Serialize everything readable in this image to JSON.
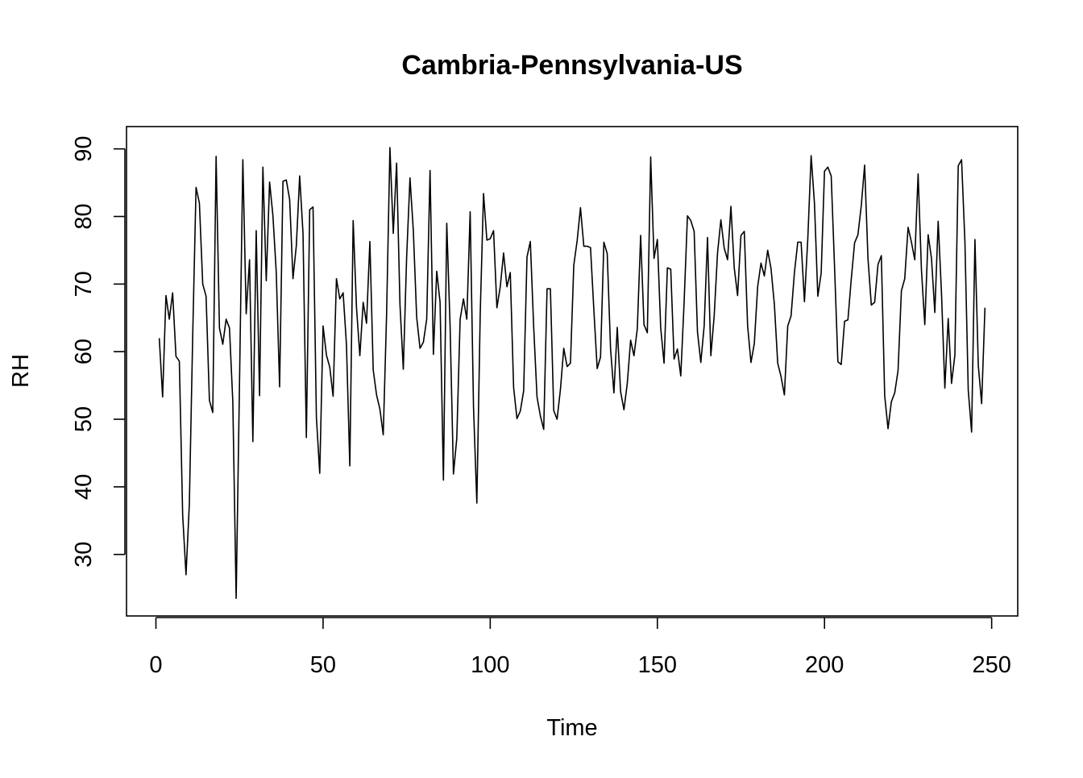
{
  "chart_data": {
    "type": "line",
    "title": "Cambria-Pennsylvania-US",
    "xlabel": "Time",
    "ylabel": "RH",
    "xlim": [
      -8.8,
      257.8
    ],
    "ylim": [
      20.9,
      93.3
    ],
    "xticks": [
      0,
      50,
      100,
      150,
      200,
      250
    ],
    "yticks": [
      30,
      40,
      50,
      60,
      70,
      80,
      90
    ],
    "grid": false,
    "legend": "none",
    "line_color": "#000000",
    "series": [
      {
        "x": [
          1,
          2,
          3,
          4,
          5,
          6,
          7,
          8,
          9,
          10,
          11,
          12,
          13,
          14,
          15,
          16,
          17,
          18,
          19,
          20,
          21,
          22,
          23,
          24,
          25,
          26,
          27,
          28,
          29,
          30,
          31,
          32,
          33,
          34,
          35,
          36,
          37,
          38,
          39,
          40,
          41,
          42,
          43,
          44,
          45,
          46,
          47,
          48,
          49,
          50,
          51,
          52,
          53,
          54,
          55,
          56,
          57,
          58,
          59,
          60,
          61,
          62,
          63,
          64,
          65,
          66,
          67,
          68,
          69,
          70,
          71,
          72,
          73,
          74,
          75,
          76,
          77,
          78,
          79,
          80,
          81,
          82,
          83,
          84,
          85,
          86,
          87,
          88,
          89,
          90,
          91,
          92,
          93,
          94,
          95,
          96,
          97,
          98,
          99,
          100,
          101,
          102,
          103,
          104,
          105,
          106,
          107,
          108,
          109,
          110,
          111,
          112,
          113,
          114,
          115,
          116,
          117,
          118,
          119,
          120,
          121,
          122,
          123,
          124,
          125,
          126,
          127,
          128,
          129,
          130,
          131,
          132,
          133,
          134,
          135,
          136,
          137,
          138,
          139,
          140,
          141,
          142,
          143,
          144,
          145,
          146,
          147,
          148,
          149,
          150,
          151,
          152,
          153,
          154,
          155,
          156,
          157,
          158,
          159,
          160,
          161,
          162,
          163,
          164,
          165,
          166,
          167,
          168,
          169,
          170,
          171,
          172,
          173,
          174,
          175,
          176,
          177,
          178,
          179,
          180,
          181,
          182,
          183,
          184,
          185,
          186,
          187,
          188,
          189,
          190,
          191,
          192,
          193,
          194,
          195,
          196,
          197,
          198,
          199,
          200,
          201,
          202,
          203,
          204,
          205,
          206,
          207,
          208,
          209,
          210,
          211,
          212,
          213,
          214,
          215,
          216,
          217,
          218,
          219,
          220,
          221,
          222,
          223,
          224,
          225,
          226,
          227,
          228,
          229,
          230,
          231,
          232,
          233,
          234,
          235,
          236,
          237,
          238,
          239,
          240,
          241,
          242,
          243,
          244,
          245,
          246,
          247,
          248
        ],
        "y": [
          62,
          53.3,
          68.3,
          64.8,
          68.7,
          59.3,
          58.6,
          35.8,
          27,
          37.5,
          62.3,
          84.3,
          82,
          70,
          68.2,
          52.8,
          51,
          88.9,
          63.5,
          61.1,
          64.8,
          63.5,
          52.6,
          23.5,
          55.3,
          88.4,
          65.6,
          73.6,
          46.7,
          77.9,
          53.5,
          87.3,
          70.5,
          85.1,
          80.1,
          71.7,
          54.8,
          85.2,
          85.4,
          82.5,
          70.8,
          75.7,
          86,
          77.5,
          47.3,
          81,
          81.4,
          50.3,
          42,
          63.8,
          59.5,
          57.7,
          53.4,
          70.8,
          67.8,
          68.7,
          61,
          43.1,
          79.4,
          66.5,
          59.4,
          67.3,
          64.2,
          76.3,
          57.3,
          53.6,
          51.5,
          47.7,
          65.5,
          90.2,
          77.5,
          87.9,
          67,
          57.4,
          74,
          85.7,
          77.9,
          65.1,
          60.5,
          61.4,
          64.8,
          86.8,
          59.6,
          71.9,
          67.3,
          41,
          79,
          63.7,
          41.9,
          47.2,
          64.8,
          67.8,
          64.8,
          80.7,
          51.8,
          37.6,
          65.4,
          83.4,
          76.5,
          76.7,
          77.9,
          66.5,
          69.6,
          74.6,
          69.6,
          71.7,
          54.7,
          50.1,
          51.2,
          54.2,
          74,
          76.3,
          63.7,
          53.3,
          50.5,
          48.5,
          69.3,
          69.3,
          51.3,
          50,
          54.4,
          60.5,
          57.8,
          58.3,
          72.8,
          76.4,
          81.3,
          75.6,
          75.6,
          75.4,
          66.2,
          57.5,
          59.2,
          76.2,
          74.5,
          60.4,
          53.9,
          63.6,
          54.1,
          51.4,
          55.3,
          61.7,
          59.4,
          63.4,
          77.2,
          64,
          62.8,
          88.8,
          73.8,
          76.6,
          63.5,
          58.3,
          72.4,
          72.2,
          58.9,
          60.4,
          56.4,
          67.3,
          80.1,
          79.4,
          77.8,
          62.9,
          58.4,
          63.8,
          76.9,
          59.4,
          65.3,
          74.6,
          79.5,
          75.3,
          73.6,
          81.5,
          72.4,
          68.3,
          77.2,
          77.8,
          63.8,
          58.4,
          61.2,
          69.6,
          73.1,
          71.2,
          75,
          72.3,
          67,
          58.3,
          56.3,
          53.6,
          63.8,
          65.3,
          71.7,
          76.2,
          76.2,
          67.4,
          76.7,
          89,
          81.9,
          68.2,
          71.6,
          86.7,
          87.3,
          86,
          72.6,
          58.5,
          58.1,
          64.5,
          64.7,
          70.7,
          76.1,
          77.3,
          81.6,
          87.6,
          73.8,
          66.9,
          67.3,
          72.9,
          74.2,
          53.5,
          48.6,
          52.6,
          53.9,
          57.2,
          69,
          70.8,
          78.4,
          76.2,
          73.6,
          86.3,
          72.1,
          64,
          77.3,
          73.8,
          65.8,
          79.3,
          68.6,
          54.6,
          64.9,
          55.3,
          59.5,
          87.5,
          88.4,
          76.3,
          54.3,
          48.1,
          76.6,
          58,
          52.3,
          66.5
        ]
      }
    ]
  }
}
